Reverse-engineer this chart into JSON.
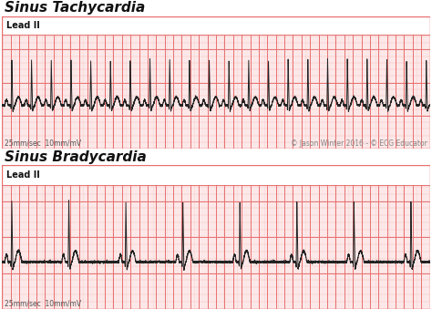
{
  "title1": "Sinus Tachycardia",
  "title2": "Sinus Bradycardia",
  "label": "Lead II",
  "footer1": "25mm/sec  10mm/mV",
  "footer2": "© Jason Winter 2016 - © ECG Educator",
  "bg_color": "#ffffff",
  "grid_major_color": "#e87070",
  "grid_minor_color": "#f5b8b8",
  "grid_bg_color": "#fff5f5",
  "header_bg_color": "#ffffff",
  "ecg_color": "#222222",
  "title_fontsize": 11,
  "label_fontsize": 7,
  "footer_fontsize": 5.5,
  "tachycardia_hr": 130,
  "bradycardia_hr": 45,
  "tachy_amplitude": 0.7,
  "brady_amplitude": 0.85
}
